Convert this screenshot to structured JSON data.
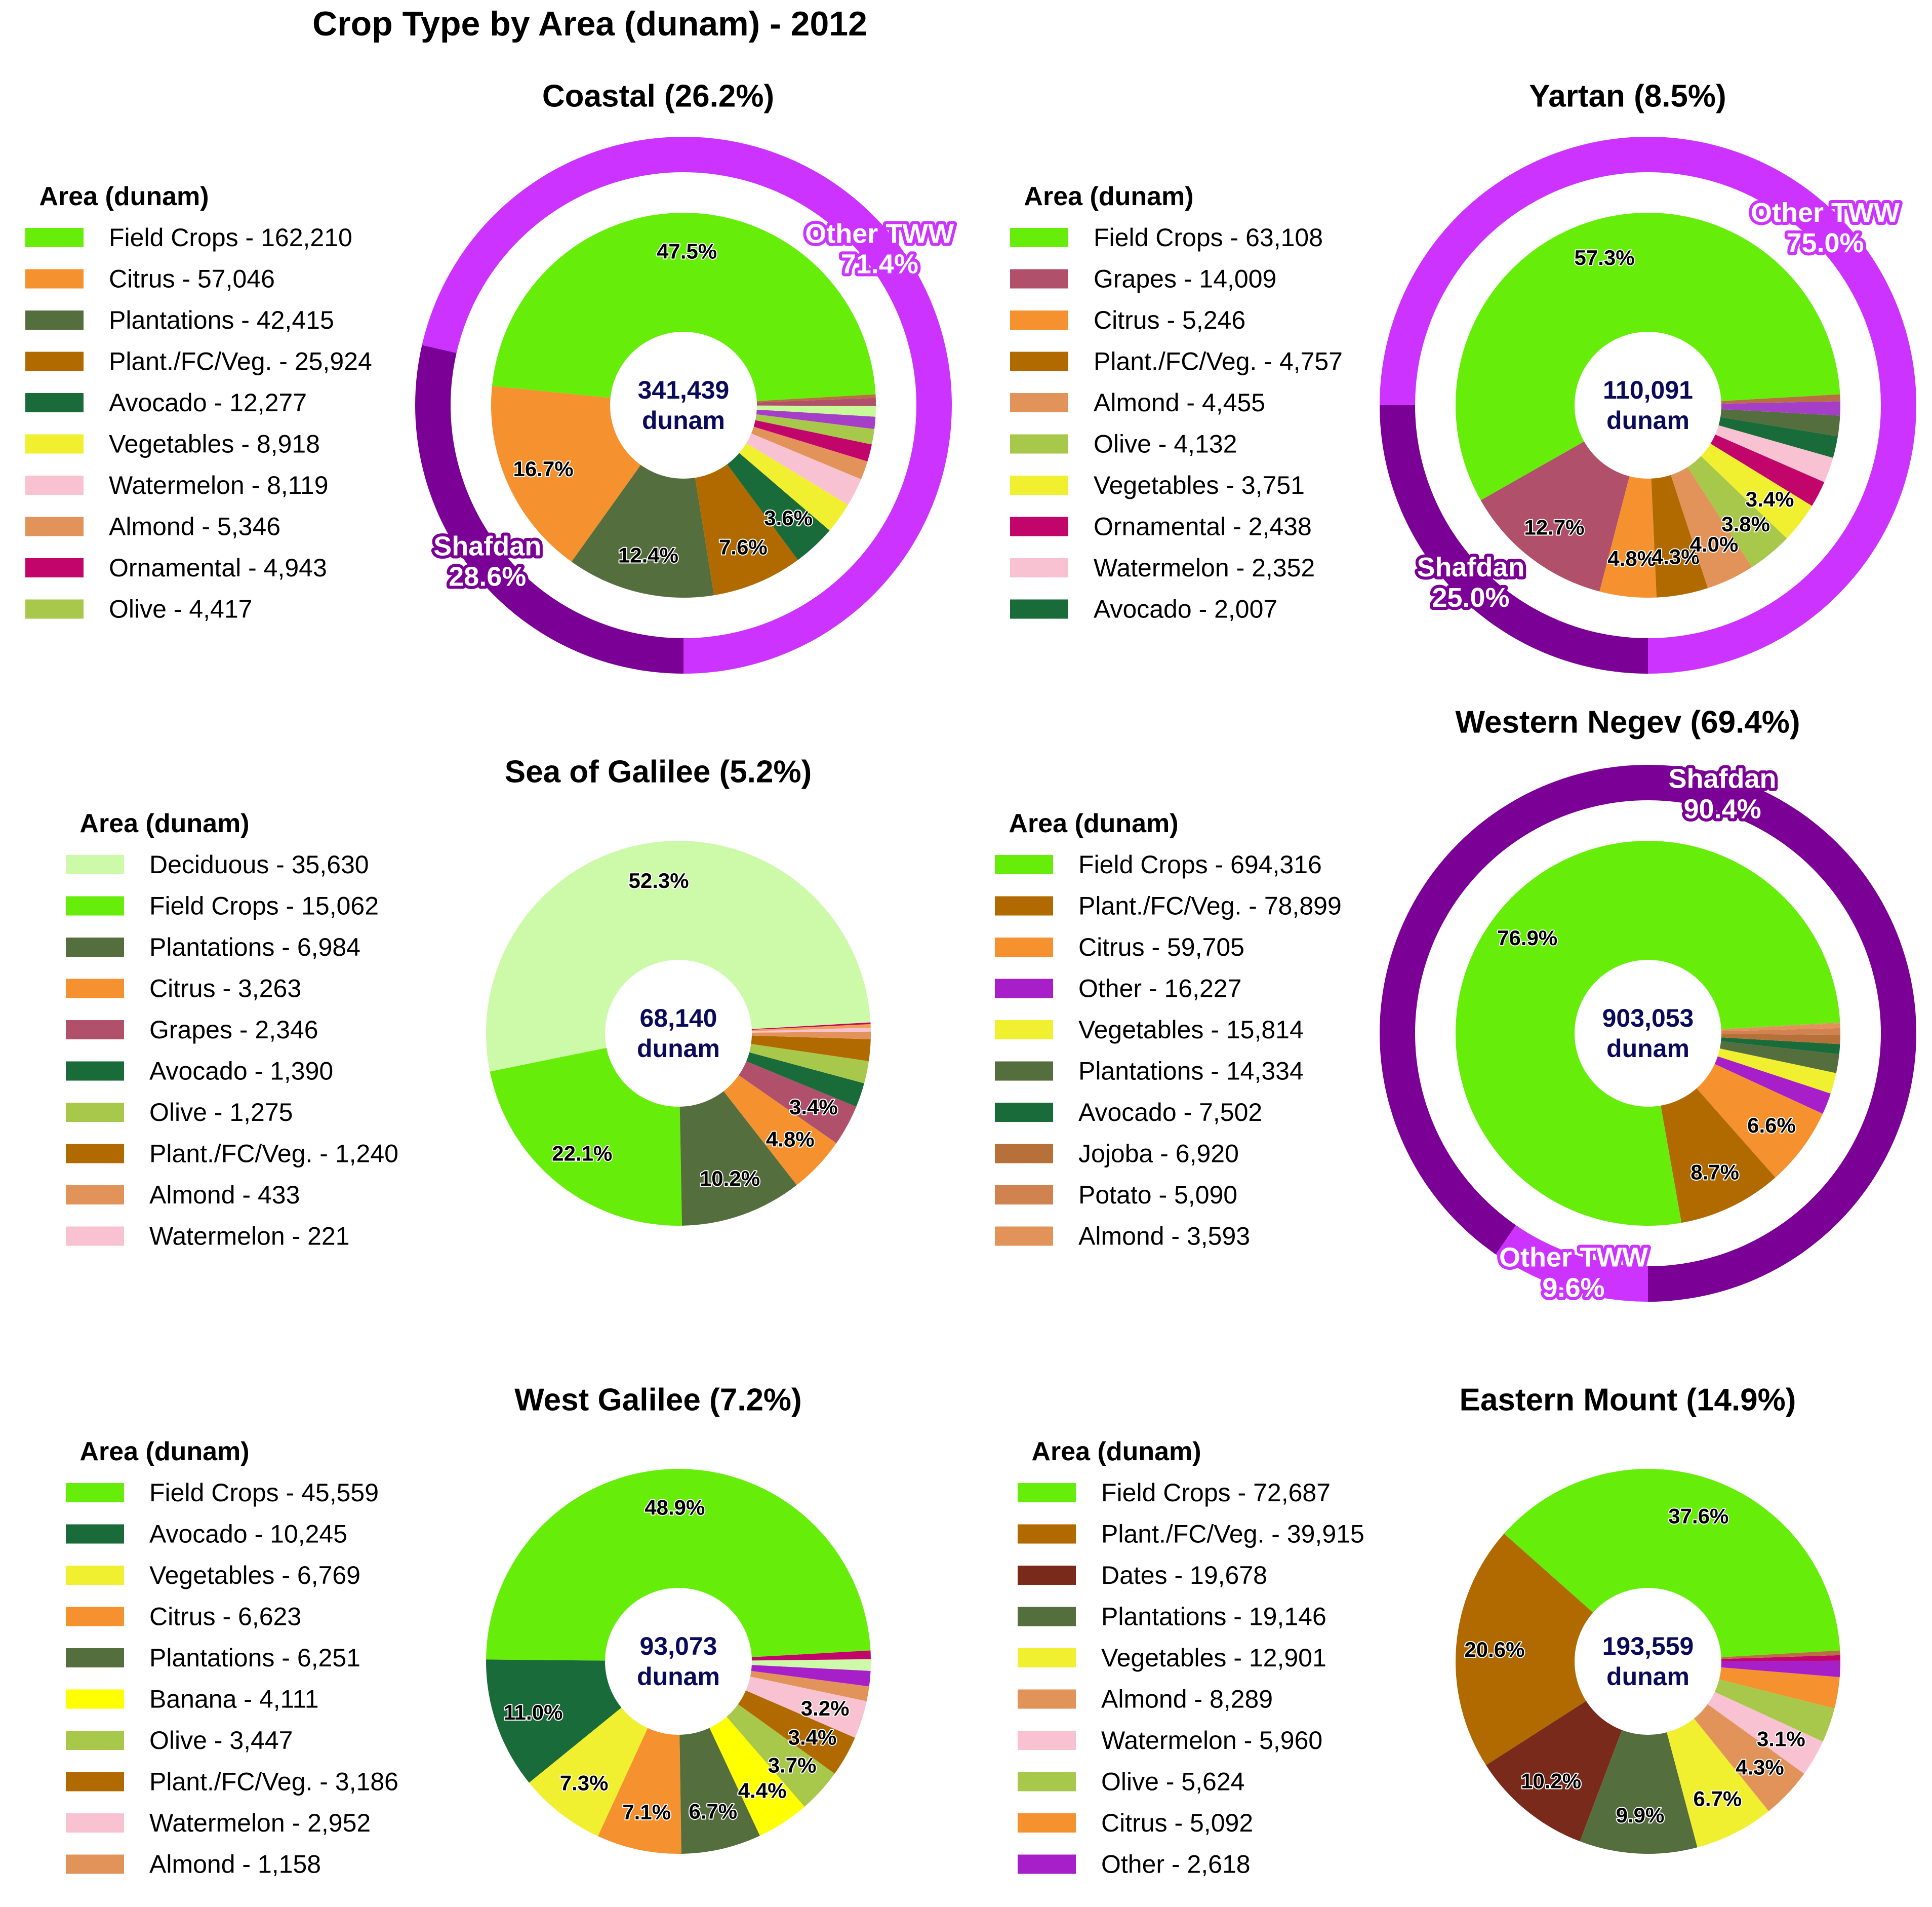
{
  "title": "Crop Type by Area (dunam) - 2012",
  "legend_title": "Area (dunam)",
  "center_unit": "dunam",
  "colors": {
    "ring_shafdan": "#7a0096",
    "ring_other": "#cc33ff",
    "center_text": "#0a0a5a"
  },
  "chart_data": [
    {
      "type": "pie",
      "title": "Coastal (26.2%)",
      "total": "341,439",
      "legend": [
        "Field Crops - 162,210",
        "Citrus - 57,046",
        "Plantations - 42,415",
        "Plant./FC/Veg. - 25,924",
        "Avocado - 12,277",
        "Vegetables - 8,918",
        "Watermelon - 8,119",
        "Almond - 5,346",
        "Ornamental - 4,943",
        "Olive - 4,417"
      ],
      "slices": [
        {
          "label": "Field Crops",
          "value": 162210,
          "color": "#66ee0a",
          "pct": "47.5%"
        },
        {
          "label": "Citrus",
          "value": 57046,
          "color": "#f5922f",
          "pct": "16.7%"
        },
        {
          "label": "Plantations",
          "value": 42415,
          "color": "#546e3e",
          "pct": "12.4%"
        },
        {
          "label": "Plant./FC/Veg.",
          "value": 25924,
          "color": "#b06a00",
          "pct": "7.6%"
        },
        {
          "label": "Avocado",
          "value": 12277,
          "color": "#1a6b3a",
          "pct": "3.6%"
        },
        {
          "label": "Vegetables",
          "value": 8918,
          "color": "#f0f030",
          "pct": ""
        },
        {
          "label": "Watermelon",
          "value": 8119,
          "color": "#f9c2d2",
          "pct": ""
        },
        {
          "label": "Almond",
          "value": 5346,
          "color": "#e2935a",
          "pct": ""
        },
        {
          "label": "Ornamental",
          "value": 4943,
          "color": "#c2056a",
          "pct": ""
        },
        {
          "label": "Olive",
          "value": 4417,
          "color": "#a8c84c",
          "pct": ""
        },
        {
          "label": "",
          "value": 3500,
          "color": "#a63fc8",
          "pct": ""
        },
        {
          "label": "",
          "value": 3000,
          "color": "#c8fa9a",
          "pct": ""
        },
        {
          "label": "",
          "value": 2324,
          "color": "#b0506a",
          "pct": ""
        },
        {
          "label": "",
          "value": 1000,
          "color": "#b87040",
          "pct": ""
        }
      ],
      "ring": [
        {
          "label": "Shafdan",
          "pct": "28.6%",
          "value": 28.6,
          "color": "#7a0096"
        },
        {
          "label": "Other TWW",
          "pct": "71.4%",
          "value": 71.4,
          "color": "#cc33ff"
        }
      ]
    },
    {
      "type": "pie",
      "title": "Yartan (8.5%)",
      "total": "110,091",
      "legend": [
        "Field Crops - 63,108",
        "Grapes - 14,009",
        "Citrus - 5,246",
        "Plant./FC/Veg. - 4,757",
        "Almond - 4,455",
        "Olive - 4,132",
        "Vegetables - 3,751",
        "Ornamental - 2,438",
        "Watermelon - 2,352",
        "Avocado - 2,007"
      ],
      "slices": [
        {
          "label": "Field Crops",
          "value": 63108,
          "color": "#66ee0a",
          "pct": "57.3%"
        },
        {
          "label": "Grapes",
          "value": 14009,
          "color": "#b0506a",
          "pct": "12.7%"
        },
        {
          "label": "Citrus",
          "value": 5246,
          "color": "#f5922f",
          "pct": "4.8%"
        },
        {
          "label": "Plant./FC/Veg.",
          "value": 4757,
          "color": "#b06a00",
          "pct": "4.3%"
        },
        {
          "label": "Almond",
          "value": 4455,
          "color": "#e2935a",
          "pct": "4.0%"
        },
        {
          "label": "Olive",
          "value": 4132,
          "color": "#a8c84c",
          "pct": "3.8%"
        },
        {
          "label": "Vegetables",
          "value": 3751,
          "color": "#f0f030",
          "pct": "3.4%"
        },
        {
          "label": "Ornamental",
          "value": 2438,
          "color": "#c2056a",
          "pct": ""
        },
        {
          "label": "Watermelon",
          "value": 2352,
          "color": "#f9c2d2",
          "pct": ""
        },
        {
          "label": "Avocado",
          "value": 2007,
          "color": "#1a6b3a",
          "pct": ""
        },
        {
          "label": "",
          "value": 1900,
          "color": "#546e3e",
          "pct": ""
        },
        {
          "label": "",
          "value": 1300,
          "color": "#a63fc8",
          "pct": ""
        },
        {
          "label": "",
          "value": 636,
          "color": "#b87040",
          "pct": ""
        }
      ],
      "ring": [
        {
          "label": "Shafdan",
          "pct": "25.0%",
          "value": 25.0,
          "color": "#7a0096"
        },
        {
          "label": "Other TWW",
          "pct": "75.0%",
          "value": 75.0,
          "color": "#cc33ff"
        }
      ]
    },
    {
      "type": "pie",
      "title": "Sea of Galilee (5.2%)",
      "total": "68,140",
      "legend": [
        "Deciduous - 35,630",
        "Field Crops - 15,062",
        "Plantations - 6,984",
        "Citrus - 3,263",
        "Grapes - 2,346",
        "Avocado - 1,390",
        "Olive - 1,275",
        "Plant./FC/Veg. - 1,240",
        "Almond - 433",
        "Watermelon - 221"
      ],
      "slices": [
        {
          "label": "Deciduous",
          "value": 35630,
          "color": "#ccfaa8",
          "pct": "52.3%"
        },
        {
          "label": "Field Crops",
          "value": 15062,
          "color": "#66ee0a",
          "pct": "22.1%"
        },
        {
          "label": "Plantations",
          "value": 6984,
          "color": "#546e3e",
          "pct": "10.2%"
        },
        {
          "label": "Citrus",
          "value": 3263,
          "color": "#f5922f",
          "pct": "4.8%"
        },
        {
          "label": "Grapes",
          "value": 2346,
          "color": "#b0506a",
          "pct": "3.4%"
        },
        {
          "label": "Avocado",
          "value": 1390,
          "color": "#1a6b3a",
          "pct": ""
        },
        {
          "label": "Olive",
          "value": 1275,
          "color": "#a8c84c",
          "pct": ""
        },
        {
          "label": "Plant./FC/Veg.",
          "value": 1240,
          "color": "#b06a00",
          "pct": ""
        },
        {
          "label": "Almond",
          "value": 433,
          "color": "#e2935a",
          "pct": ""
        },
        {
          "label": "Watermelon",
          "value": 221,
          "color": "#f9c2d2",
          "pct": ""
        },
        {
          "label": "",
          "value": 200,
          "color": "#f0a050",
          "pct": ""
        },
        {
          "label": "",
          "value": 96,
          "color": "#c2056a",
          "pct": ""
        }
      ],
      "ring": []
    },
    {
      "type": "pie",
      "title": "Western Negev (69.4%)",
      "total": "903,053",
      "legend": [
        "Field Crops - 694,316",
        "Plant./FC/Veg. - 78,899",
        "Citrus - 59,705",
        "Other - 16,227",
        "Vegetables - 15,814",
        "Plantations - 14,334",
        "Avocado - 7,502",
        "Jojoba - 6,920",
        "Potato - 5,090",
        "Almond - 3,593"
      ],
      "slices": [
        {
          "label": "Field Crops",
          "value": 694316,
          "color": "#66ee0a",
          "pct": "76.9%"
        },
        {
          "label": "Plant./FC/Veg.",
          "value": 78899,
          "color": "#b06a00",
          "pct": "8.7%"
        },
        {
          "label": "Citrus",
          "value": 59705,
          "color": "#f5922f",
          "pct": "6.6%"
        },
        {
          "label": "Other",
          "value": 16227,
          "color": "#a61fc8",
          "pct": ""
        },
        {
          "label": "Vegetables",
          "value": 15814,
          "color": "#f0f030",
          "pct": ""
        },
        {
          "label": "Plantations",
          "value": 14334,
          "color": "#546e3e",
          "pct": ""
        },
        {
          "label": "Avocado",
          "value": 7502,
          "color": "#1a6b3a",
          "pct": ""
        },
        {
          "label": "Jojoba",
          "value": 6920,
          "color": "#b8703a",
          "pct": ""
        },
        {
          "label": "Potato",
          "value": 5090,
          "color": "#d0824f",
          "pct": ""
        },
        {
          "label": "Almond",
          "value": 3593,
          "color": "#e2935a",
          "pct": ""
        },
        {
          "label": "",
          "value": 653,
          "color": "#c8a060",
          "pct": ""
        }
      ],
      "ring": [
        {
          "label": "Other TWW",
          "pct": "9.6%",
          "value": 9.6,
          "color": "#cc33ff"
        },
        {
          "label": "Shafdan",
          "pct": "90.4%",
          "value": 90.4,
          "color": "#7a0096"
        }
      ]
    },
    {
      "type": "pie",
      "title": "West Galilee (7.2%)",
      "total": "93,073",
      "legend": [
        "Field Crops - 45,559",
        "Avocado - 10,245",
        "Vegetables - 6,769",
        "Citrus - 6,623",
        "Plantations - 6,251",
        "Banana - 4,111",
        "Olive - 3,447",
        "Plant./FC/Veg. - 3,186",
        "Watermelon - 2,952",
        "Almond - 1,158"
      ],
      "slices": [
        {
          "label": "Field Crops",
          "value": 45559,
          "color": "#66ee0a",
          "pct": "48.9%"
        },
        {
          "label": "Avocado",
          "value": 10245,
          "color": "#1a6b3a",
          "pct": "11.0%"
        },
        {
          "label": "Vegetables",
          "value": 6769,
          "color": "#f0f030",
          "pct": "7.3%"
        },
        {
          "label": "Citrus",
          "value": 6623,
          "color": "#f5922f",
          "pct": "7.1%"
        },
        {
          "label": "Plantations",
          "value": 6251,
          "color": "#546e3e",
          "pct": "6.7%"
        },
        {
          "label": "Banana",
          "value": 4111,
          "color": "#ffff00",
          "pct": "4.4%"
        },
        {
          "label": "Olive",
          "value": 3447,
          "color": "#a8c84c",
          "pct": "3.7%"
        },
        {
          "label": "Plant./FC/Veg.",
          "value": 3186,
          "color": "#b06a00",
          "pct": "3.4%"
        },
        {
          "label": "Watermelon",
          "value": 2952,
          "color": "#f9c2d2",
          "pct": "3.2%"
        },
        {
          "label": "Almond",
          "value": 1158,
          "color": "#e2935a",
          "pct": ""
        },
        {
          "label": "",
          "value": 1200,
          "color": "#a61fc8",
          "pct": ""
        },
        {
          "label": "",
          "value": 900,
          "color": "#ccfaa8",
          "pct": ""
        },
        {
          "label": "",
          "value": 672,
          "color": "#c2056a",
          "pct": ""
        }
      ],
      "ring": []
    },
    {
      "type": "pie",
      "title": "Eastern Mount (14.9%)",
      "total": "193,559",
      "legend": [
        "Field Crops - 72,687",
        "Plant./FC/Veg. - 39,915",
        "Dates - 19,678",
        "Plantations - 19,146",
        "Vegetables - 12,901",
        "Almond - 8,289",
        "Watermelon - 5,960",
        "Olive - 5,624",
        "Citrus - 5,092",
        "Other - 2,618"
      ],
      "slices": [
        {
          "label": "Field Crops",
          "value": 72687,
          "color": "#66ee0a",
          "pct": "37.6%"
        },
        {
          "label": "Plant./FC/Veg.",
          "value": 39915,
          "color": "#b06a00",
          "pct": "20.6%"
        },
        {
          "label": "Dates",
          "value": 19678,
          "color": "#7a2a1a",
          "pct": "10.2%"
        },
        {
          "label": "Plantations",
          "value": 19146,
          "color": "#546e3e",
          "pct": "9.9%"
        },
        {
          "label": "Vegetables",
          "value": 12901,
          "color": "#f0f030",
          "pct": "6.7%"
        },
        {
          "label": "Almond",
          "value": 8289,
          "color": "#e2935a",
          "pct": "4.3%"
        },
        {
          "label": "Watermelon",
          "value": 5960,
          "color": "#f9c2d2",
          "pct": "3.1%"
        },
        {
          "label": "Olive",
          "value": 5624,
          "color": "#a8c84c",
          "pct": ""
        },
        {
          "label": "Citrus",
          "value": 5092,
          "color": "#f5922f",
          "pct": ""
        },
        {
          "label": "Other",
          "value": 2618,
          "color": "#a61fc8",
          "pct": ""
        },
        {
          "label": "",
          "value": 900,
          "color": "#c2056a",
          "pct": ""
        },
        {
          "label": "",
          "value": 749,
          "color": "#b87040",
          "pct": ""
        }
      ],
      "ring": []
    }
  ]
}
